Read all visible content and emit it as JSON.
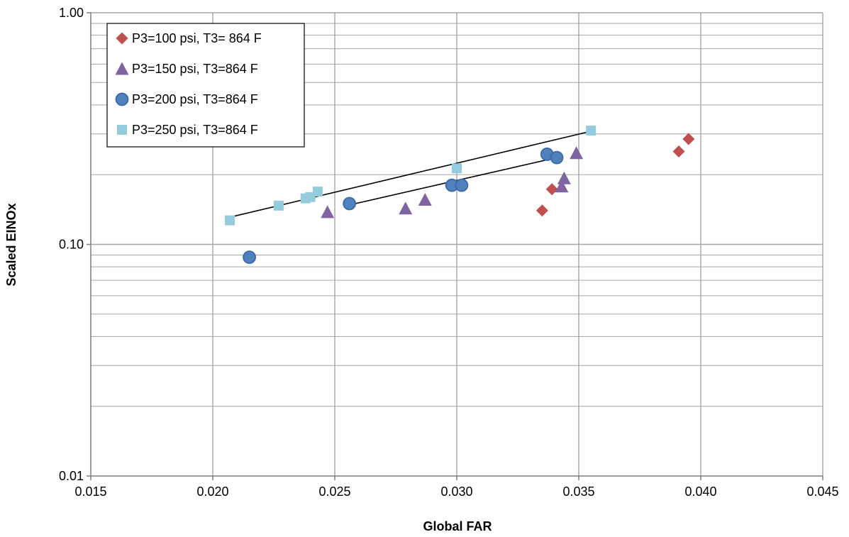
{
  "chart_data": {
    "type": "scatter",
    "title": "",
    "xlabel": "Global FAR",
    "ylabel": "Scaled EINOx",
    "xlim": [
      0.015,
      0.045
    ],
    "ylim": [
      0.01,
      1.0
    ],
    "y_scale": "log",
    "x_ticks": [
      "0.015",
      "0.020",
      "0.025",
      "0.030",
      "0.035",
      "0.040",
      "0.045"
    ],
    "y_ticks": [
      "0.01",
      "0.10",
      "1.00"
    ],
    "grid": true,
    "legend_position": "top-left",
    "series": [
      {
        "name": "P3=100 psi, T3= 864 F",
        "marker": "diamond",
        "color": "#c0504d",
        "points": [
          [
            0.0335,
            0.14
          ],
          [
            0.0339,
            0.173
          ],
          [
            0.0391,
            0.252
          ],
          [
            0.0395,
            0.285
          ]
        ]
      },
      {
        "name": "P3=150 psi, T3=864 F",
        "marker": "triangle",
        "color": "#8064a2",
        "points": [
          [
            0.0247,
            0.138
          ],
          [
            0.0279,
            0.143
          ],
          [
            0.0287,
            0.156
          ],
          [
            0.0343,
            0.178
          ],
          [
            0.0344,
            0.193
          ],
          [
            0.0349,
            0.248
          ]
        ]
      },
      {
        "name": "P3=200 psi, T3=864 F",
        "marker": "circle",
        "color": "#4f81bd",
        "points": [
          [
            0.0215,
            0.088
          ],
          [
            0.0256,
            0.15
          ],
          [
            0.0298,
            0.18
          ],
          [
            0.0302,
            0.18
          ],
          [
            0.0337,
            0.245
          ],
          [
            0.0341,
            0.237
          ]
        ]
      },
      {
        "name": "P3=250 psi, T3=864 F",
        "marker": "square",
        "color": "#93cddd",
        "points": [
          [
            0.0207,
            0.127
          ],
          [
            0.0227,
            0.147
          ],
          [
            0.0238,
            0.158
          ],
          [
            0.024,
            0.16
          ],
          [
            0.0243,
            0.169
          ],
          [
            0.03,
            0.213
          ],
          [
            0.0355,
            0.31
          ]
        ]
      }
    ],
    "trendlines": [
      {
        "x": [
          0.0207,
          0.0355
        ],
        "y": [
          0.131,
          0.308
        ],
        "color": "#000000"
      },
      {
        "x": [
          0.0256,
          0.0341
        ],
        "y": [
          0.148,
          0.237
        ],
        "color": "#000000"
      }
    ]
  }
}
